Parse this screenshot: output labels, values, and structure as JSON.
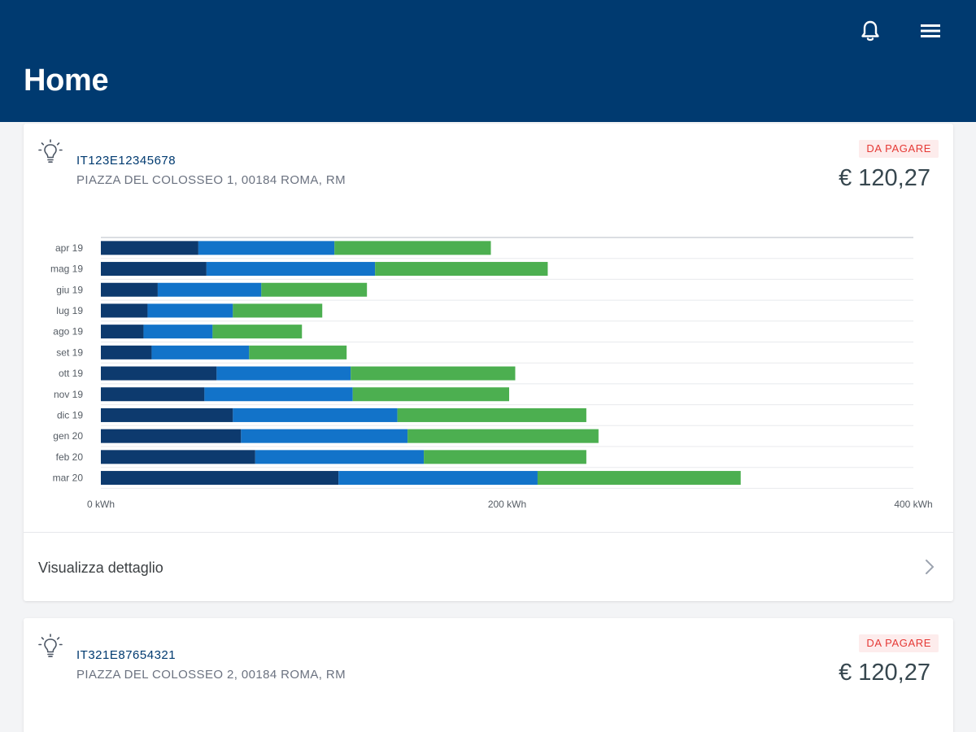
{
  "header": {
    "title": "Home",
    "bell_icon": "bell-icon",
    "menu_icon": "hamburger-menu-icon",
    "background": "#003a70"
  },
  "cards": [
    {
      "icon": "lightbulb-icon",
      "code": "IT123E12345678",
      "address": "PIAZZA DEL COLOSSEO 1, 00184 ROMA, RM",
      "status": "DA PAGARE",
      "amount": "€ 120,27",
      "detail_label": "Visualizza dettaglio",
      "detail_icon": "chevron-right-icon"
    },
    {
      "icon": "lightbulb-icon",
      "code": "IT321E87654321",
      "address": "PIAZZA DEL COLOSSEO 2, 00184 ROMA, RM",
      "status": "DA PAGARE",
      "amount": "€ 120,27"
    }
  ],
  "colors": {
    "series1": "#0d3a6e",
    "series2": "#1273c9",
    "series3": "#4caf50",
    "status": "#e53935"
  },
  "chart_data": {
    "type": "bar",
    "orientation": "horizontal",
    "stacked": true,
    "categories": [
      "apr 19",
      "mag 19",
      "giu 19",
      "lug 19",
      "ago 19",
      "set 19",
      "ott 19",
      "nov 19",
      "dic 19",
      "gen 20",
      "feb 20",
      "mar 20"
    ],
    "series": [
      {
        "values": [
          48,
          52,
          28,
          23,
          21,
          25,
          57,
          51,
          65,
          69,
          76,
          117
        ]
      },
      {
        "values": [
          67,
          83,
          51,
          42,
          34,
          48,
          66,
          73,
          81,
          82,
          83,
          98
        ]
      },
      {
        "values": [
          77,
          85,
          52,
          44,
          44,
          48,
          81,
          77,
          93,
          94,
          80,
          100
        ]
      }
    ],
    "xlim": [
      0,
      400
    ],
    "xticks": [
      "0 kWh",
      "200 kWh",
      "400 kWh"
    ],
    "grid": true,
    "legend": "none"
  }
}
